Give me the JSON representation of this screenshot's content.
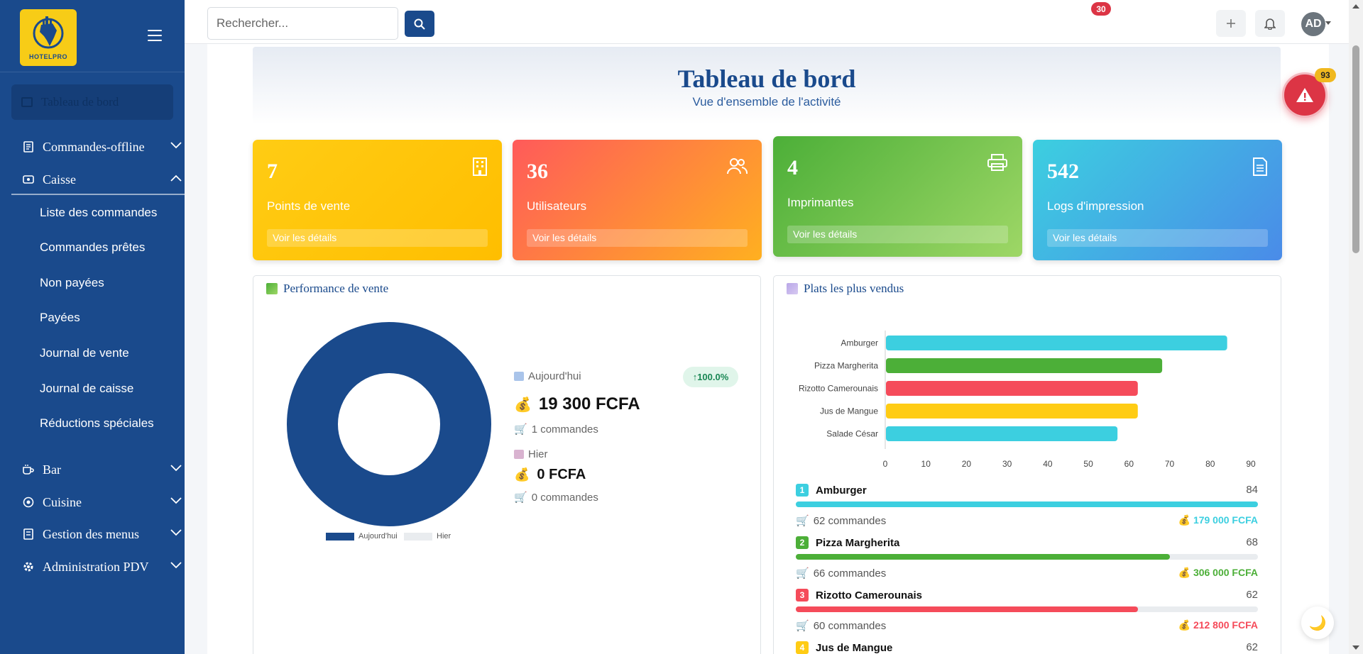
{
  "app": {
    "logo_text": "HOTELPRO"
  },
  "sidebar": {
    "active_item": "Tableau de bord",
    "items": [
      {
        "label": "Commandes-offline",
        "icon": "receipt-icon"
      },
      {
        "label": "Caisse",
        "icon": "cash-register-icon"
      },
      {
        "label": "Bar",
        "icon": "coffee-cup-icon"
      },
      {
        "label": "Cuisine",
        "icon": "chef-icon"
      },
      {
        "label": "Gestion des menus",
        "icon": "menu-book-icon"
      },
      {
        "label": "Administration PDV",
        "icon": "gear-icon"
      }
    ],
    "caisse_subitems": [
      "Liste des commandes",
      "Commandes prêtes",
      "Non payées",
      "Payées",
      "Journal de vente",
      "Journal de caisse",
      "Réductions spéciales"
    ]
  },
  "header": {
    "search_placeholder": "Rechercher...",
    "notifications_count": "30",
    "avatar_initials": "AD"
  },
  "hero": {
    "title": "Tableau de bord",
    "subtitle": "Vue d'ensemble de l'activité"
  },
  "stats": [
    {
      "value": "7",
      "label": "Points de vente",
      "details": "Voir les détails",
      "icon": "building-icon",
      "color": "#ffc107"
    },
    {
      "value": "36",
      "label": "Utilisateurs",
      "details": "Voir les détails",
      "icon": "users-icon",
      "color": "#fd5c5c"
    },
    {
      "value": "4",
      "label": "Imprimantes",
      "details": "Voir les détails",
      "icon": "printer-icon",
      "color": "#5cb85c"
    },
    {
      "value": "542",
      "label": "Logs d'impression",
      "details": "Voir les détails",
      "icon": "document-icon",
      "color": "#3bb0e0"
    }
  ],
  "performance": {
    "title": "Performance de vente",
    "today_label": "Aujourd'hui",
    "today_amount": "19 300 FCFA",
    "today_orders": "1 commandes",
    "change": "↑100.0%",
    "yesterday_label": "Hier",
    "yesterday_amount": "0 FCFA",
    "yesterday_orders": "0 commandes",
    "legend": [
      "Aujourd'hui",
      "Hier"
    ]
  },
  "top_dishes": {
    "title": "Plats les plus vendus",
    "ranking": [
      {
        "rank": "1",
        "name": "Amburger",
        "count": "84",
        "orders": "62 commandes",
        "amount": "179 000 FCFA",
        "color": "#3ccfe0",
        "fill": 1.0
      },
      {
        "rank": "2",
        "name": "Pizza Margherita",
        "count": "68",
        "orders": "66 commandes",
        "amount": "306 000 FCFA",
        "color": "#4caf38",
        "fill": 0.81
      },
      {
        "rank": "3",
        "name": "Rizotto Camerounais",
        "count": "62",
        "orders": "60 commandes",
        "amount": "212 800 FCFA",
        "color": "#f54b5a",
        "fill": 0.74
      },
      {
        "rank": "4",
        "name": "Jus de Mangue",
        "count": "62"
      }
    ]
  },
  "alerts": {
    "count": "93"
  },
  "chart_data": [
    {
      "type": "pie",
      "labels": [
        "Aujourd'hui",
        "Hier"
      ],
      "values": [
        19300,
        0
      ],
      "colors": [
        "#1a4a8c",
        "#e9ecef"
      ],
      "legend": "bottom"
    },
    {
      "type": "bar",
      "orientation": "horizontal",
      "categories": [
        "Amburger",
        "Pizza Margherita",
        "Rizotto Camerounais",
        "Jus de Mangue",
        "Salade César"
      ],
      "values": [
        84,
        68,
        62,
        62,
        57
      ],
      "colors": [
        "#3ccfe0",
        "#4caf38",
        "#f54b5a",
        "#ffcc14",
        "#3ccfe0"
      ],
      "xlim": [
        0,
        90
      ],
      "xticks": [
        0,
        10,
        20,
        30,
        40,
        50,
        60,
        70,
        80,
        90
      ]
    }
  ]
}
